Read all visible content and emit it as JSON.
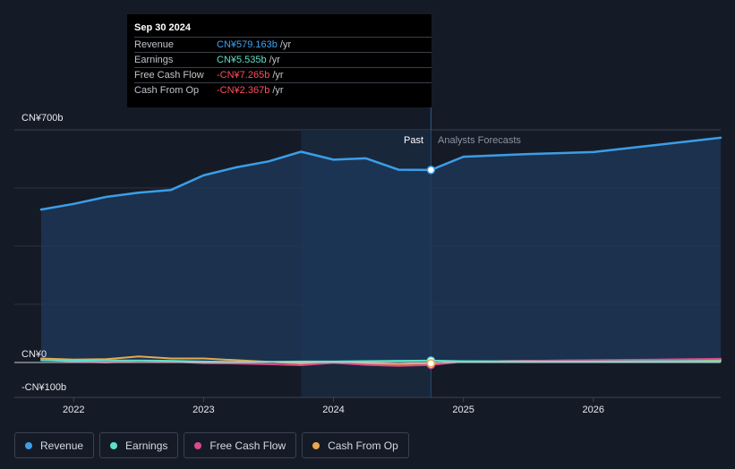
{
  "tooltip": {
    "date": "Sep 30 2024",
    "rows": [
      {
        "label": "Revenue",
        "value": "CN¥579.163b",
        "unit": "/yr",
        "color": "#3fa3f0"
      },
      {
        "label": "Earnings",
        "value": "CN¥5.535b",
        "unit": "/yr",
        "color": "#5ce0c8"
      },
      {
        "label": "Free Cash Flow",
        "value": "-CN¥7.265b",
        "unit": "/yr",
        "color": "#ff4d5e"
      },
      {
        "label": "Cash From Op",
        "value": "-CN¥2.367b",
        "unit": "/yr",
        "color": "#ff4d5e"
      }
    ]
  },
  "labels": {
    "past": "Past",
    "forecast": "Analysts Forecasts"
  },
  "legend": [
    {
      "label": "Revenue",
      "color": "#3b9ee8"
    },
    {
      "label": "Earnings",
      "color": "#5ce0c8"
    },
    {
      "label": "Free Cash Flow",
      "color": "#d94a8c"
    },
    {
      "label": "Cash From Op",
      "color": "#e8a84f"
    }
  ],
  "chart_data": {
    "type": "line",
    "xlim": [
      2021.55,
      2026.98
    ],
    "ylim": [
      -100,
      700
    ],
    "y_ticks": [
      {
        "value": 700,
        "label": "CN¥700b"
      },
      {
        "value": 0,
        "label": "CN¥0"
      },
      {
        "value": -100,
        "label": "-CN¥100b"
      }
    ],
    "x_ticks": [
      {
        "value": 2022,
        "label": "2022"
      },
      {
        "value": 2023,
        "label": "2023"
      },
      {
        "value": 2024,
        "label": "2024"
      },
      {
        "value": 2025,
        "label": "2025"
      },
      {
        "value": 2026,
        "label": "2026"
      }
    ],
    "past_end": 2024.75,
    "highlight_start": 2023.75,
    "series": [
      {
        "name": "Revenue",
        "color": "#3b9ee8",
        "points": [
          [
            2021.75,
            460
          ],
          [
            2022.0,
            477
          ],
          [
            2022.25,
            498
          ],
          [
            2022.5,
            511
          ],
          [
            2022.75,
            519
          ],
          [
            2023.0,
            563
          ],
          [
            2023.25,
            587
          ],
          [
            2023.5,
            605
          ],
          [
            2023.75,
            634
          ],
          [
            2024.0,
            610
          ],
          [
            2024.25,
            614
          ],
          [
            2024.5,
            580
          ],
          [
            2024.75,
            579.163
          ],
          [
            2025.0,
            619
          ],
          [
            2025.5,
            627
          ],
          [
            2026.0,
            633
          ],
          [
            2026.5,
            655
          ],
          [
            2026.98,
            676
          ]
        ]
      },
      {
        "name": "Earnings",
        "color": "#5ce0c8",
        "points": [
          [
            2021.75,
            7
          ],
          [
            2022.0,
            5
          ],
          [
            2022.25,
            6
          ],
          [
            2022.5,
            6
          ],
          [
            2022.75,
            5
          ],
          [
            2023.0,
            3
          ],
          [
            2023.25,
            2
          ],
          [
            2023.5,
            2
          ],
          [
            2023.75,
            3
          ],
          [
            2024.0,
            3
          ],
          [
            2024.25,
            4
          ],
          [
            2024.5,
            5
          ],
          [
            2024.75,
            5.535
          ],
          [
            2025.0,
            4
          ],
          [
            2025.5,
            3
          ],
          [
            2026.0,
            3
          ],
          [
            2026.5,
            4
          ],
          [
            2026.98,
            4
          ]
        ]
      },
      {
        "name": "Free Cash Flow",
        "color": "#d94a8c",
        "points": [
          [
            2021.75,
            8
          ],
          [
            2022.0,
            3
          ],
          [
            2022.25,
            0
          ],
          [
            2022.5,
            5
          ],
          [
            2022.75,
            3
          ],
          [
            2023.0,
            -2
          ],
          [
            2023.25,
            -3
          ],
          [
            2023.5,
            -5
          ],
          [
            2023.75,
            -8
          ],
          [
            2024.0,
            -1
          ],
          [
            2024.25,
            -7
          ],
          [
            2024.5,
            -10
          ],
          [
            2024.75,
            -7.265
          ],
          [
            2025.0,
            3
          ],
          [
            2025.5,
            5
          ],
          [
            2026.0,
            7
          ],
          [
            2026.5,
            9
          ],
          [
            2026.98,
            11
          ]
        ]
      },
      {
        "name": "Cash From Op",
        "color": "#e8a84f",
        "points": [
          [
            2021.75,
            12
          ],
          [
            2022.0,
            9
          ],
          [
            2022.25,
            10
          ],
          [
            2022.5,
            18
          ],
          [
            2022.75,
            12
          ],
          [
            2023.0,
            12
          ],
          [
            2023.25,
            7
          ],
          [
            2023.5,
            2
          ],
          [
            2023.75,
            -3
          ],
          [
            2024.0,
            2
          ],
          [
            2024.25,
            -3
          ],
          [
            2024.5,
            -5
          ],
          [
            2024.75,
            -2.367
          ],
          [
            2025.0,
            3
          ],
          [
            2025.5,
            5
          ],
          [
            2026.0,
            6
          ],
          [
            2026.5,
            7
          ],
          [
            2026.98,
            8
          ]
        ]
      }
    ]
  }
}
